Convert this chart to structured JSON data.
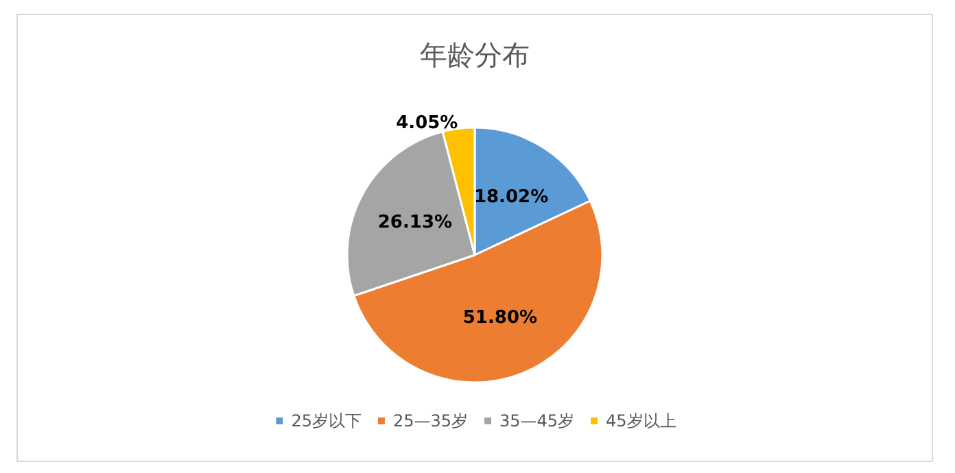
{
  "chart_data": {
    "type": "pie",
    "title": "年龄分布",
    "categories": [
      "25岁以下",
      "25—35岁",
      "35—45岁",
      "45岁以上"
    ],
    "values": [
      18.02,
      51.8,
      26.13,
      4.05
    ],
    "colors": [
      "#5b9bd5",
      "#ed7d31",
      "#a5a5a5",
      "#ffc000"
    ],
    "value_labels": [
      "18.02%",
      "51.80%",
      "26.13%",
      "4.05%"
    ],
    "legend": "bottom"
  }
}
